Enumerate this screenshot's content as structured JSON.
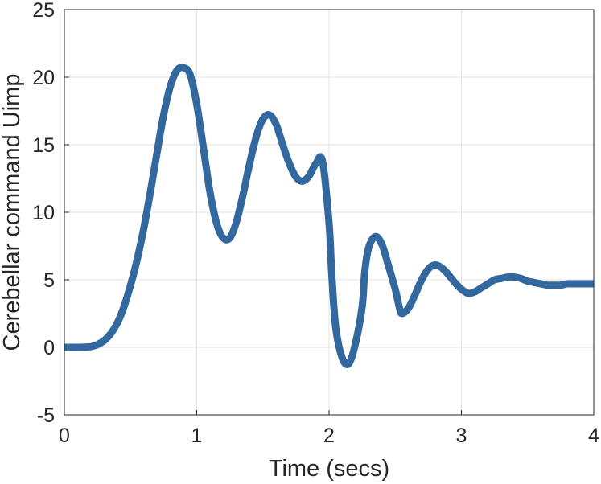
{
  "chart_data": {
    "type": "line",
    "title": "",
    "xlabel": "Time (secs)",
    "ylabel": "Cerebellar command Uimp",
    "xlim": [
      0,
      4
    ],
    "ylim": [
      -5,
      25
    ],
    "xticks": [
      "0",
      "1",
      "2",
      "3",
      "4"
    ],
    "yticks": [
      "-5",
      "0",
      "5",
      "10",
      "15",
      "20",
      "25"
    ],
    "grid": true,
    "series": [
      {
        "color": "#33689E",
        "x": [
          0.0,
          0.1,
          0.2,
          0.25,
          0.3,
          0.35,
          0.4,
          0.45,
          0.5,
          0.55,
          0.6,
          0.65,
          0.7,
          0.75,
          0.8,
          0.85,
          0.9,
          0.95,
          1.0,
          1.05,
          1.1,
          1.15,
          1.2,
          1.25,
          1.3,
          1.35,
          1.4,
          1.45,
          1.5,
          1.55,
          1.6,
          1.65,
          1.7,
          1.75,
          1.8,
          1.85,
          1.9,
          1.95,
          2.0,
          2.02,
          2.05,
          2.1,
          2.15,
          2.2,
          2.25,
          2.27,
          2.3,
          2.35,
          2.4,
          2.45,
          2.5,
          2.53,
          2.55,
          2.6,
          2.65,
          2.7,
          2.75,
          2.8,
          2.85,
          2.9,
          2.95,
          3.0,
          3.05,
          3.1,
          3.15,
          3.2,
          3.25,
          3.3,
          3.35,
          3.4,
          3.45,
          3.5,
          3.55,
          3.6,
          3.65,
          3.7,
          3.75,
          3.8,
          3.85,
          3.9,
          3.95,
          4.0
        ],
        "y": [
          0.0,
          0.0,
          0.05,
          0.2,
          0.5,
          1.0,
          1.8,
          3.0,
          4.6,
          6.5,
          8.8,
          11.5,
          14.4,
          17.2,
          19.3,
          20.5,
          20.7,
          20.2,
          18.0,
          14.8,
          11.5,
          9.2,
          8.1,
          8.1,
          9.3,
          11.3,
          13.6,
          15.6,
          16.9,
          17.2,
          16.5,
          15.0,
          13.6,
          12.6,
          12.3,
          12.7,
          13.6,
          13.8,
          9.2,
          5.5,
          1.5,
          -0.8,
          -1.2,
          0.3,
          3.0,
          5.6,
          7.4,
          8.2,
          7.6,
          6.0,
          4.3,
          3.0,
          2.5,
          2.9,
          3.9,
          5.0,
          5.8,
          6.1,
          5.9,
          5.4,
          4.8,
          4.3,
          4.0,
          4.1,
          4.4,
          4.7,
          5.0,
          5.1,
          5.2,
          5.2,
          5.1,
          4.9,
          4.8,
          4.7,
          4.6,
          4.6,
          4.6,
          4.7,
          4.7,
          4.7,
          4.7,
          4.7
        ]
      }
    ]
  }
}
